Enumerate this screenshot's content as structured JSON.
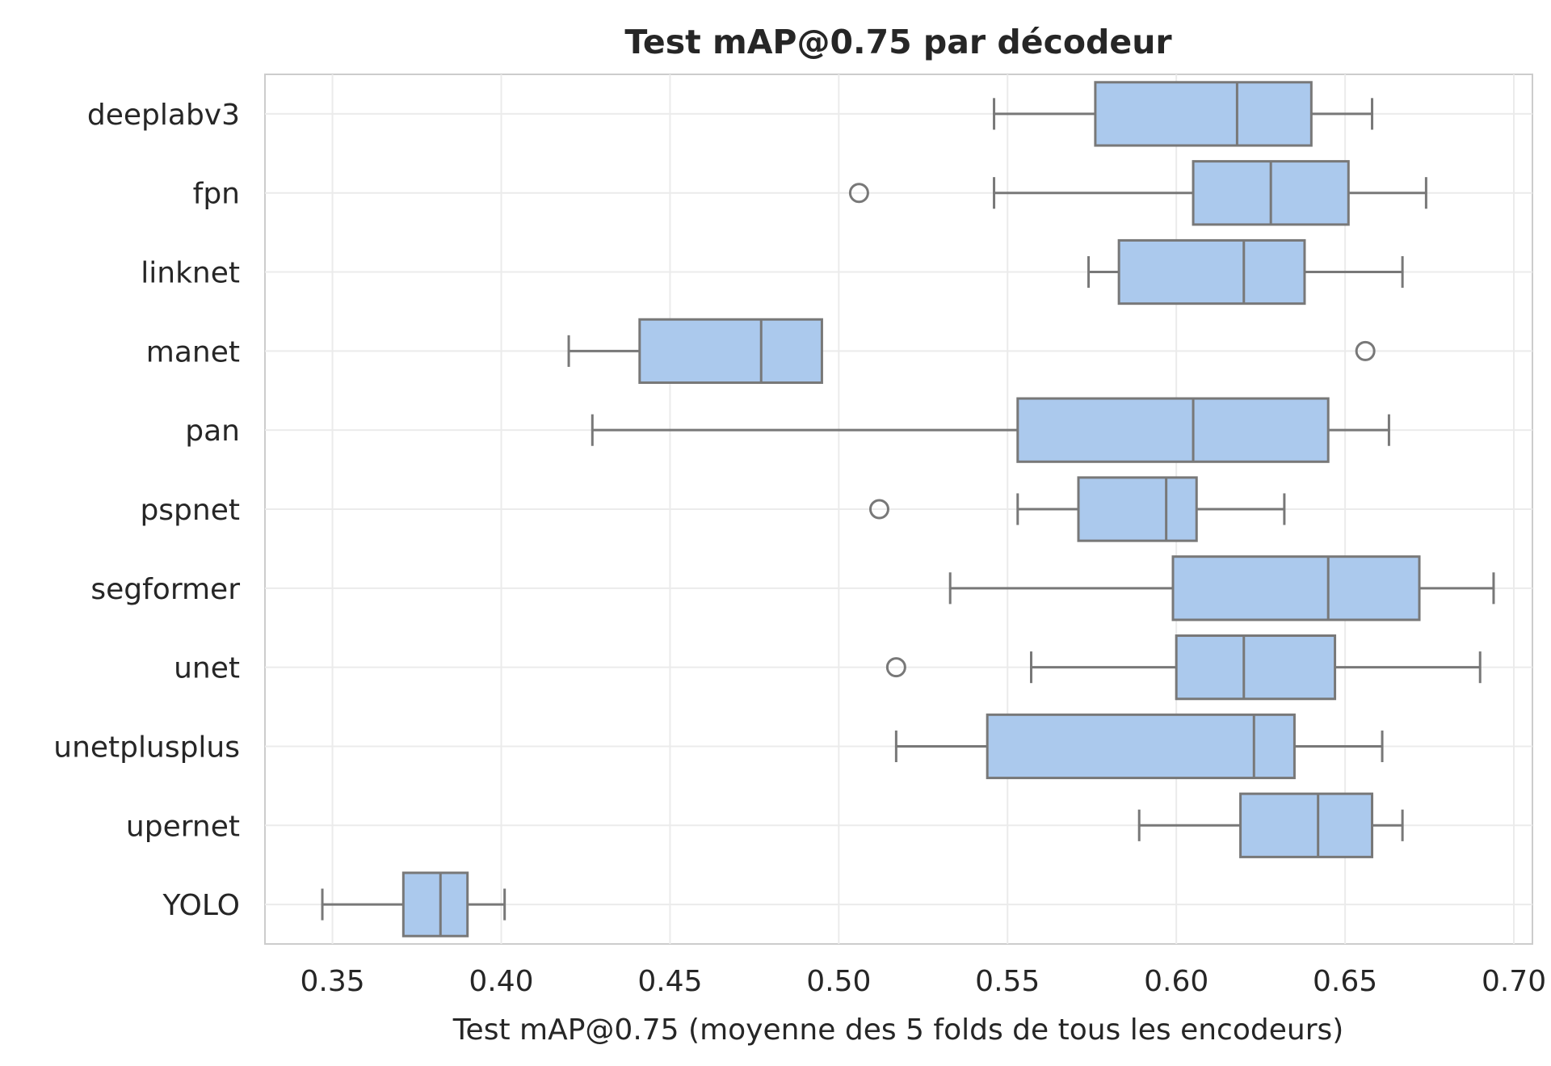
{
  "chart_data": {
    "type": "boxplot",
    "orientation": "horizontal",
    "title": "Test mAP@0.75 par décodeur",
    "xlabel": "Test mAP@0.75 (moyenne des 5 folds de tous les encodeurs)",
    "ylabel": "",
    "xlim": [
      0.33,
      0.7055
    ],
    "xticks": [
      0.35,
      0.4,
      0.45,
      0.5,
      0.55,
      0.6,
      0.65,
      0.7
    ],
    "xtick_labels": [
      "0.35",
      "0.40",
      "0.45",
      "0.50",
      "0.55",
      "0.60",
      "0.65",
      "0.70"
    ],
    "grid": true,
    "box_color": "#abc9ed",
    "line_color": "#787878",
    "categories": [
      "deeplabv3",
      "fpn",
      "linknet",
      "manet",
      "pan",
      "pspnet",
      "segformer",
      "unet",
      "unetplusplus",
      "upernet",
      "YOLO"
    ],
    "boxes": [
      {
        "label": "deeplabv3",
        "whislo": 0.546,
        "q1": 0.576,
        "med": 0.618,
        "q3": 0.64,
        "whishi": 0.658,
        "fliers": []
      },
      {
        "label": "fpn",
        "whislo": 0.546,
        "q1": 0.605,
        "med": 0.628,
        "q3": 0.651,
        "whishi": 0.674,
        "fliers": [
          0.506
        ]
      },
      {
        "label": "linknet",
        "whislo": 0.574,
        "q1": 0.583,
        "med": 0.62,
        "q3": 0.638,
        "whishi": 0.667,
        "fliers": []
      },
      {
        "label": "manet",
        "whislo": 0.42,
        "q1": 0.441,
        "med": 0.477,
        "q3": 0.495,
        "whishi": 0.495,
        "fliers": [
          0.656
        ]
      },
      {
        "label": "pan",
        "whislo": 0.427,
        "q1": 0.553,
        "med": 0.605,
        "q3": 0.645,
        "whishi": 0.663,
        "fliers": []
      },
      {
        "label": "pspnet",
        "whislo": 0.553,
        "q1": 0.571,
        "med": 0.597,
        "q3": 0.606,
        "whishi": 0.632,
        "fliers": [
          0.512
        ]
      },
      {
        "label": "segformer",
        "whislo": 0.533,
        "q1": 0.599,
        "med": 0.645,
        "q3": 0.672,
        "whishi": 0.694,
        "fliers": []
      },
      {
        "label": "unet",
        "whislo": 0.557,
        "q1": 0.6,
        "med": 0.62,
        "q3": 0.647,
        "whishi": 0.69,
        "fliers": [
          0.517
        ]
      },
      {
        "label": "unetplusplus",
        "whislo": 0.517,
        "q1": 0.544,
        "med": 0.623,
        "q3": 0.635,
        "whishi": 0.661,
        "fliers": []
      },
      {
        "label": "upernet",
        "whislo": 0.589,
        "q1": 0.619,
        "med": 0.642,
        "q3": 0.658,
        "whishi": 0.667,
        "fliers": []
      },
      {
        "label": "YOLO",
        "whislo": 0.347,
        "q1": 0.371,
        "med": 0.382,
        "q3": 0.39,
        "whishi": 0.401,
        "fliers": []
      }
    ]
  }
}
